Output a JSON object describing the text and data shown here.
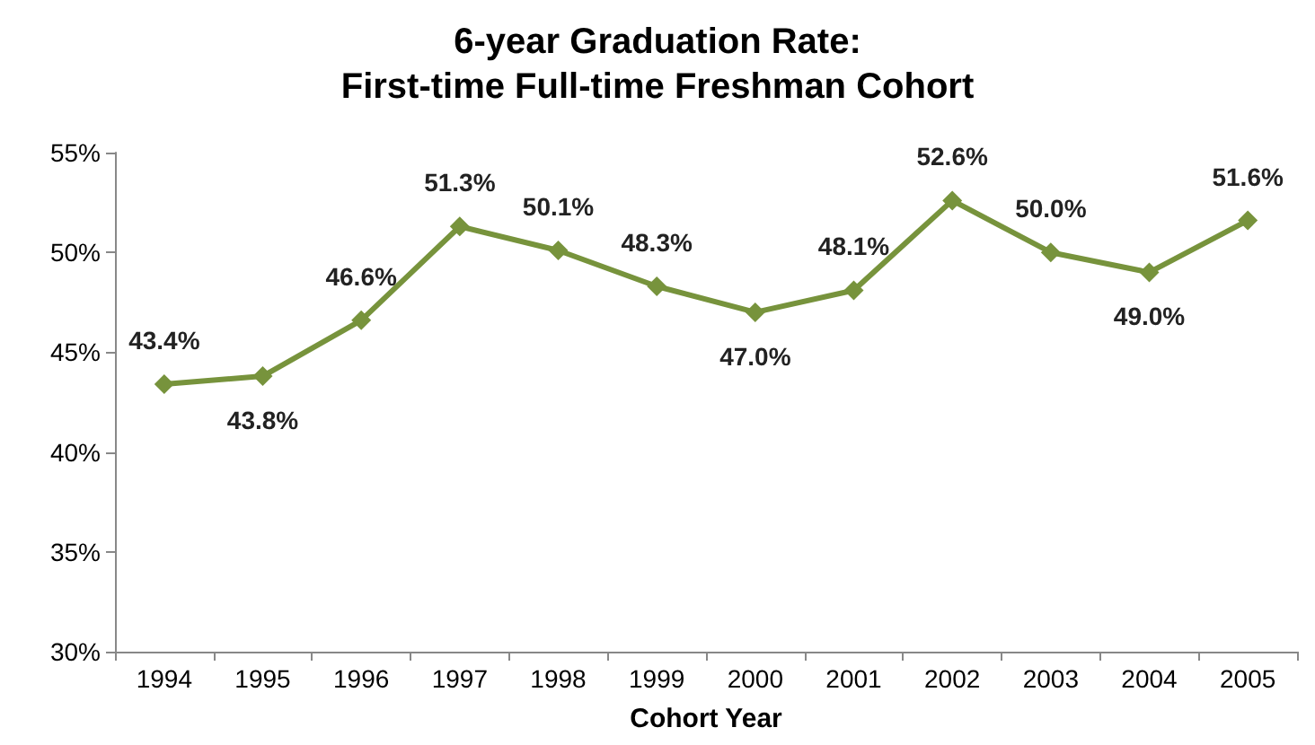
{
  "chart_data": {
    "type": "line",
    "title": "6-year Graduation Rate:\nFirst-time Full-time Freshman Cohort",
    "xlabel": "Cohort Year",
    "categories": [
      "1994",
      "1995",
      "1996",
      "1997",
      "1998",
      "1999",
      "2000",
      "2001",
      "2002",
      "2003",
      "2004",
      "2005"
    ],
    "series": [
      {
        "color": "#77933c",
        "values": [
          43.4,
          43.8,
          46.6,
          51.3,
          50.1,
          48.3,
          47.0,
          48.1,
          52.6,
          50.0,
          49.0,
          51.6
        ],
        "value_labels": [
          "43.4%",
          "43.8%",
          "46.6%",
          "51.3%",
          "50.1%",
          "48.3%",
          "47.0%",
          "48.1%",
          "52.6%",
          "50.0%",
          "49.0%",
          "51.6%"
        ]
      }
    ],
    "ylim": [
      30,
      55
    ],
    "yticks": [
      {
        "value": 30,
        "label": "30%"
      },
      {
        "value": 35,
        "label": "35%"
      },
      {
        "value": 40,
        "label": "40%"
      },
      {
        "value": 45,
        "label": "45%"
      },
      {
        "value": 50,
        "label": "50%"
      },
      {
        "value": 55,
        "label": "55%"
      }
    ],
    "grid": false,
    "marker": "diamond",
    "line_style": "solid"
  }
}
